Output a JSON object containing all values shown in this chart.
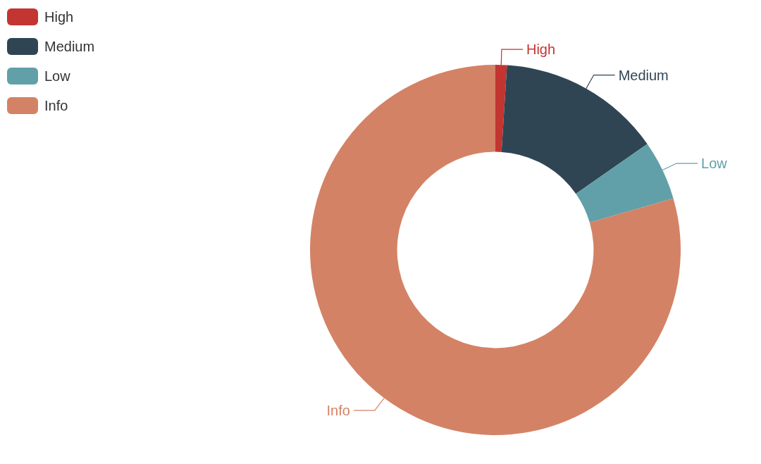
{
  "chart_data": {
    "type": "donut",
    "categories": [
      "High",
      "Medium",
      "Low",
      "Info"
    ],
    "values": [
      1,
      14.3,
      5.2,
      79.5
    ],
    "colors": [
      "#c23531",
      "#2f4554",
      "#61a0a8",
      "#d48265"
    ],
    "legend": "top left"
  }
}
